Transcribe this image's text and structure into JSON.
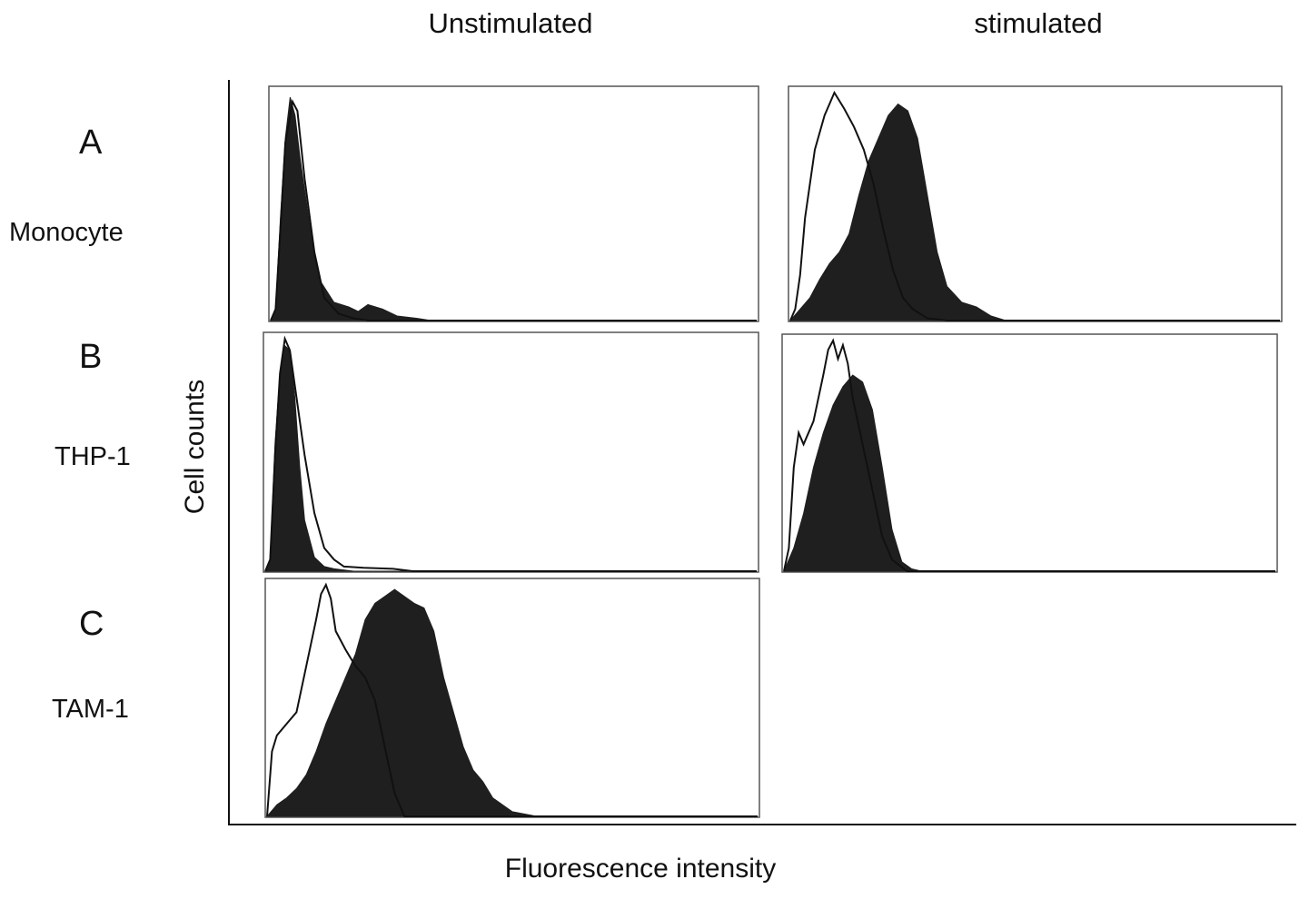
{
  "columns": [
    "Unstimulated",
    "stimulated"
  ],
  "rows": [
    {
      "letter": "A",
      "name": "Monocyte"
    },
    {
      "letter": "B",
      "name": "THP-1"
    },
    {
      "letter": "C",
      "name": "TAM-1"
    }
  ],
  "axes": {
    "x": "Fluorescence intensity",
    "y": "Cell counts"
  },
  "colors": {
    "filled": "#1f1f1f",
    "outline": "#111111",
    "frame": "#555555",
    "axis": "#111111"
  },
  "chart_data": [
    {
      "type": "area",
      "panel": "A-unstimulated",
      "row": "A",
      "column": "Unstimulated",
      "xlim": [
        0,
        1
      ],
      "ylim": [
        0,
        1
      ],
      "series": [
        {
          "style": "filled",
          "x": [
            0,
            0.01,
            0.02,
            0.03,
            0.04,
            0.05,
            0.06,
            0.08,
            0.1,
            0.13,
            0.16,
            0.18,
            0.2,
            0.23,
            0.26,
            0.3,
            0.33,
            0.35,
            1.0
          ],
          "y": [
            0,
            0.05,
            0.45,
            0.8,
            0.98,
            0.9,
            0.72,
            0.42,
            0.18,
            0.08,
            0.06,
            0.04,
            0.07,
            0.05,
            0.02,
            0.01,
            0.0,
            0.0,
            0.0
          ]
        },
        {
          "style": "outline",
          "x": [
            0,
            0.01,
            0.02,
            0.03,
            0.045,
            0.055,
            0.07,
            0.09,
            0.11,
            0.14,
            0.17,
            0.2,
            0.25,
            1.0
          ],
          "y": [
            0,
            0.05,
            0.4,
            0.78,
            0.96,
            0.92,
            0.62,
            0.3,
            0.1,
            0.03,
            0.01,
            0.0,
            0.0,
            0.0
          ]
        }
      ]
    },
    {
      "type": "area",
      "panel": "A-stimulated",
      "row": "A",
      "column": "stimulated",
      "xlim": [
        0,
        1
      ],
      "ylim": [
        0,
        1
      ],
      "series": [
        {
          "style": "filled",
          "x": [
            0,
            0.02,
            0.04,
            0.06,
            0.08,
            0.1,
            0.12,
            0.14,
            0.16,
            0.18,
            0.2,
            0.22,
            0.24,
            0.26,
            0.28,
            0.3,
            0.32,
            0.35,
            0.38,
            0.41,
            0.44,
            1.0
          ],
          "y": [
            0,
            0.05,
            0.1,
            0.18,
            0.25,
            0.3,
            0.38,
            0.55,
            0.7,
            0.8,
            0.9,
            0.95,
            0.92,
            0.8,
            0.55,
            0.3,
            0.15,
            0.08,
            0.06,
            0.02,
            0.0,
            0.0
          ]
        },
        {
          "style": "outline",
          "x": [
            0,
            0.01,
            0.02,
            0.03,
            0.05,
            0.07,
            0.08,
            0.09,
            0.11,
            0.13,
            0.15,
            0.17,
            0.19,
            0.21,
            0.23,
            0.25,
            0.28,
            0.32,
            1.0
          ],
          "y": [
            0,
            0.05,
            0.2,
            0.45,
            0.75,
            0.9,
            0.95,
            1.0,
            0.93,
            0.85,
            0.75,
            0.6,
            0.4,
            0.22,
            0.1,
            0.05,
            0.01,
            0.0,
            0.0
          ]
        }
      ]
    },
    {
      "type": "area",
      "panel": "B-unstimulated",
      "row": "B",
      "column": "Unstimulated",
      "xlim": [
        0,
        1
      ],
      "ylim": [
        0,
        1
      ],
      "series": [
        {
          "style": "filled",
          "x": [
            0,
            0.01,
            0.02,
            0.03,
            0.04,
            0.05,
            0.06,
            0.07,
            0.08,
            0.1,
            0.12,
            0.14,
            0.18,
            1.0
          ],
          "y": [
            0,
            0.05,
            0.55,
            0.85,
            0.97,
            0.95,
            0.75,
            0.45,
            0.22,
            0.06,
            0.02,
            0.01,
            0.0,
            0.0
          ]
        },
        {
          "style": "outline",
          "x": [
            0,
            0.01,
            0.02,
            0.03,
            0.04,
            0.05,
            0.06,
            0.08,
            0.1,
            0.12,
            0.14,
            0.16,
            0.2,
            0.26,
            0.3,
            1.0
          ],
          "y": [
            0,
            0.05,
            0.5,
            0.85,
            1.0,
            0.95,
            0.8,
            0.5,
            0.25,
            0.1,
            0.05,
            0.02,
            0.015,
            0.01,
            0.0,
            0.0
          ]
        }
      ]
    },
    {
      "type": "area",
      "panel": "B-stimulated",
      "row": "B",
      "column": "stimulated",
      "xlim": [
        0,
        1
      ],
      "ylim": [
        0,
        1
      ],
      "series": [
        {
          "style": "filled",
          "x": [
            0,
            0.02,
            0.04,
            0.06,
            0.08,
            0.1,
            0.12,
            0.14,
            0.16,
            0.18,
            0.2,
            0.22,
            0.24,
            0.26,
            0.28,
            0.3,
            1.0
          ],
          "y": [
            0,
            0.1,
            0.25,
            0.45,
            0.6,
            0.72,
            0.8,
            0.85,
            0.82,
            0.7,
            0.45,
            0.18,
            0.04,
            0.01,
            0.0,
            0.0,
            0.0
          ]
        },
        {
          "style": "outline",
          "x": [
            0,
            0.01,
            0.02,
            0.03,
            0.04,
            0.06,
            0.08,
            0.09,
            0.1,
            0.11,
            0.12,
            0.13,
            0.14,
            0.16,
            0.18,
            0.2,
            0.22,
            0.25,
            1.0
          ],
          "y": [
            0,
            0.1,
            0.45,
            0.6,
            0.55,
            0.65,
            0.85,
            0.96,
            1.0,
            0.92,
            0.98,
            0.9,
            0.75,
            0.55,
            0.35,
            0.15,
            0.05,
            0.0,
            0.0
          ]
        }
      ]
    },
    {
      "type": "area",
      "panel": "C-unstimulated",
      "row": "C",
      "column": "Unstimulated",
      "xlim": [
        0,
        1
      ],
      "ylim": [
        0,
        1
      ],
      "series": [
        {
          "style": "filled",
          "x": [
            0,
            0.02,
            0.04,
            0.06,
            0.08,
            0.1,
            0.12,
            0.14,
            0.16,
            0.18,
            0.2,
            0.22,
            0.24,
            0.26,
            0.28,
            0.3,
            0.32,
            0.34,
            0.36,
            0.38,
            0.4,
            0.42,
            0.44,
            0.46,
            0.48,
            0.5,
            0.55,
            1.0
          ],
          "y": [
            0,
            0.05,
            0.08,
            0.12,
            0.18,
            0.28,
            0.4,
            0.5,
            0.6,
            0.7,
            0.85,
            0.92,
            0.95,
            0.98,
            0.95,
            0.92,
            0.9,
            0.8,
            0.6,
            0.45,
            0.3,
            0.2,
            0.15,
            0.08,
            0.05,
            0.02,
            0.0,
            0.0
          ]
        },
        {
          "style": "outline",
          "x": [
            0,
            0.01,
            0.02,
            0.04,
            0.06,
            0.08,
            0.1,
            0.11,
            0.12,
            0.13,
            0.14,
            0.16,
            0.18,
            0.2,
            0.22,
            0.24,
            0.26,
            0.28,
            1.0
          ],
          "y": [
            0,
            0.28,
            0.35,
            0.4,
            0.45,
            0.65,
            0.85,
            0.96,
            1.0,
            0.94,
            0.8,
            0.72,
            0.65,
            0.6,
            0.5,
            0.3,
            0.1,
            0.0,
            0.0
          ]
        }
      ]
    }
  ]
}
